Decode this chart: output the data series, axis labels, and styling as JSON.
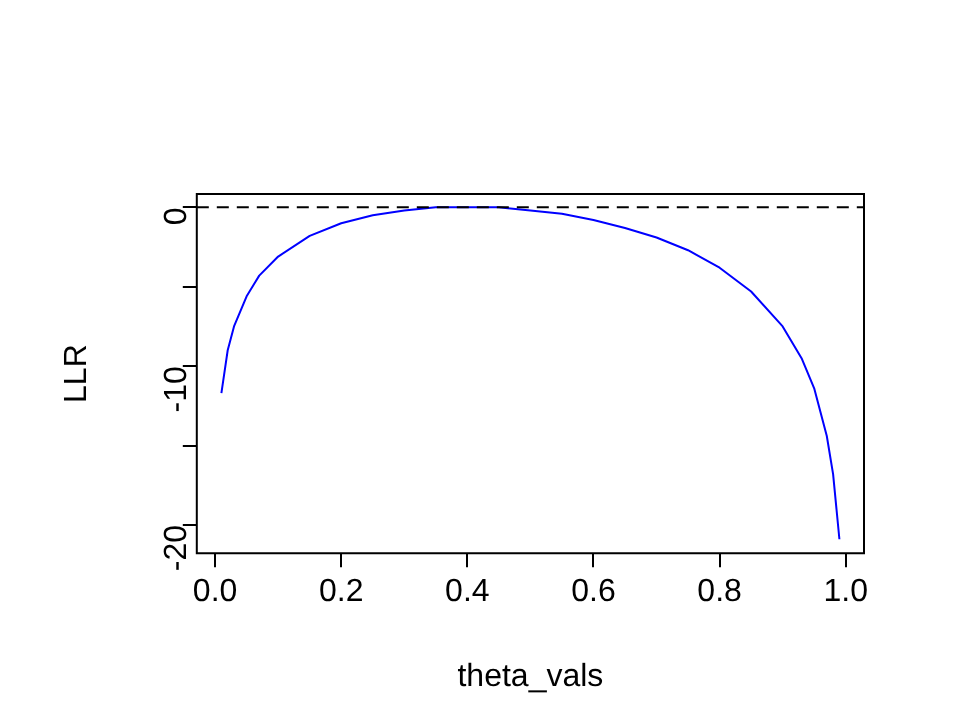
{
  "chart_data": {
    "type": "line",
    "xlabel": "theta_vals",
    "ylabel": "LLR",
    "x": [
      0.01,
      0.02,
      0.03,
      0.05,
      0.07,
      0.1,
      0.15,
      0.2,
      0.25,
      0.3,
      0.35,
      0.4,
      0.45,
      0.5,
      0.55,
      0.6,
      0.65,
      0.7,
      0.75,
      0.8,
      0.85,
      0.9,
      0.93,
      0.95,
      0.97,
      0.98,
      0.99
    ],
    "series": [
      {
        "color": "#0000ff",
        "values": [
          -11.7,
          -9,
          -7.5,
          -5.6,
          -4.3,
          -3.1,
          -1.8,
          -1,
          -0.5,
          -0.2,
          0,
          0,
          0,
          -0.2,
          -0.4,
          -0.8,
          -1.3,
          -1.9,
          -2.7,
          -3.8,
          -5.3,
          -7.5,
          -9.5,
          -11.4,
          -14.4,
          -16.8,
          -20.9
        ]
      }
    ],
    "xlim": [
      -0.029,
      1.029
    ],
    "xticks": [
      {
        "value": 0,
        "label": "0.0"
      },
      0.2,
      0.4,
      0.6,
      0.8,
      {
        "value": 1,
        "label": "1.0"
      }
    ],
    "ylim": [
      -21.78,
      0.84
    ],
    "yticks": [
      {
        "value": -20,
        "label": "-20"
      },
      {
        "value": -15,
        "label": null
      },
      {
        "value": -10,
        "label": "-10"
      },
      {
        "value": -5,
        "label": null
      },
      {
        "value": 0,
        "label": "0"
      }
    ],
    "ref_lines": [
      {
        "axis": "y",
        "value": 0,
        "color": "#000000",
        "line_style": "dashed"
      }
    ],
    "marker": "none",
    "line_style": "solid",
    "grid": false,
    "legend": false
  }
}
